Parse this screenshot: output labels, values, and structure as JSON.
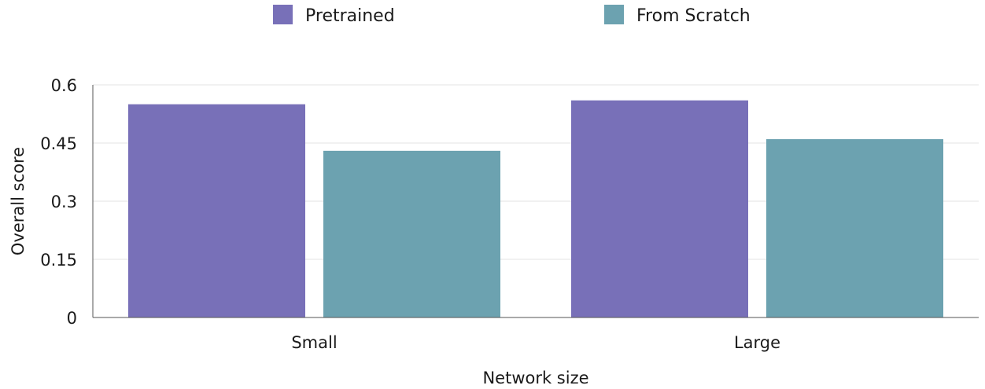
{
  "chart_data": {
    "type": "bar",
    "categories": [
      "Small",
      "Large"
    ],
    "series": [
      {
        "name": "Pretrained",
        "values": [
          0.55,
          0.56
        ],
        "color": "#7870b8"
      },
      {
        "name": "From Scratch",
        "values": [
          0.43,
          0.46
        ],
        "color": "#6ca2b0"
      }
    ],
    "xlabel": "Network size",
    "ylabel": "Overall score",
    "ylim": [
      0,
      0.6
    ],
    "yticks": [
      0,
      0.15,
      0.3,
      0.45,
      0.6
    ],
    "ytick_labels": [
      "0",
      "0.15",
      "0.3",
      "0.45",
      "0.6"
    ],
    "grid": true,
    "legend_position": "top-center"
  }
}
